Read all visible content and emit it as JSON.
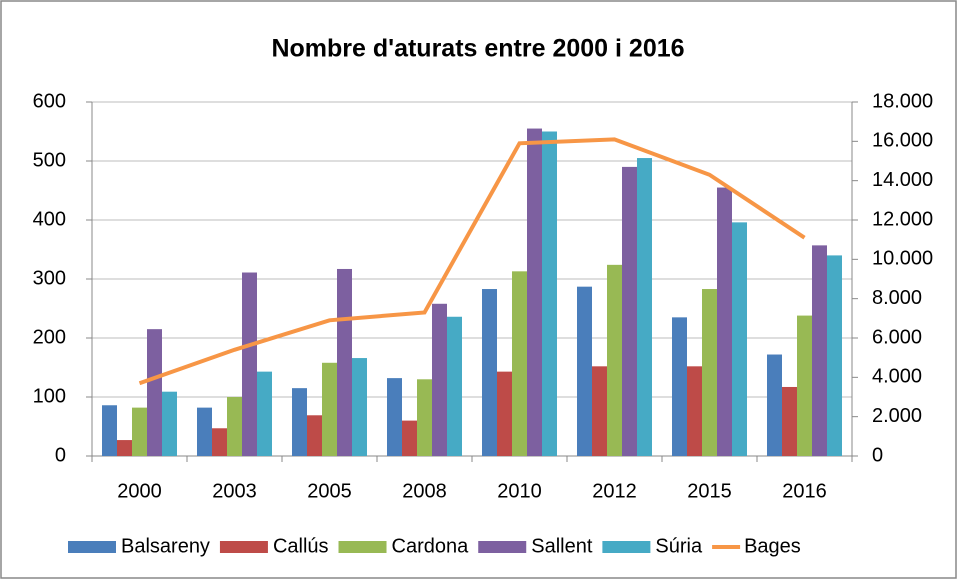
{
  "chart_data": {
    "type": "bar",
    "title": "Nombre d'aturats entre 2000 i 2016",
    "categories": [
      "2000",
      "2003",
      "2005",
      "2008",
      "2010",
      "2012",
      "2015",
      "2016"
    ],
    "series": [
      {
        "name": "Balsareny",
        "color": "#4a7ebb",
        "values": [
          86,
          82,
          115,
          132,
          283,
          287,
          235,
          172
        ]
      },
      {
        "name": "Callús",
        "color": "#be4b48",
        "values": [
          27,
          47,
          69,
          60,
          143,
          152,
          152,
          117
        ]
      },
      {
        "name": "Cardona",
        "color": "#98b954",
        "values": [
          82,
          100,
          158,
          130,
          313,
          324,
          283,
          238
        ]
      },
      {
        "name": "Sallent",
        "color": "#7d60a0",
        "values": [
          215,
          311,
          317,
          258,
          555,
          490,
          455,
          357
        ]
      },
      {
        "name": "Súria",
        "color": "#46aac5",
        "values": [
          109,
          143,
          166,
          236,
          550,
          505,
          396,
          340
        ]
      },
      {
        "name": "Bages",
        "color": "#f79646",
        "type": "line",
        "axis": "y2",
        "values": [
          3700,
          5400,
          6900,
          7300,
          15900,
          16100,
          14300,
          11100
        ]
      }
    ],
    "ylim": [
      0,
      600
    ],
    "yticks": [
      0,
      100,
      200,
      300,
      400,
      500,
      600
    ],
    "y2lim": [
      0,
      18000
    ],
    "y2ticks": [
      0,
      {
        "value": 2000,
        "label": "2.000"
      },
      {
        "value": 4000,
        "label": "4.000"
      },
      {
        "value": 6000,
        "label": "6.000"
      },
      {
        "value": 8000,
        "label": "8.000"
      },
      {
        "value": 10000,
        "label": "10.000"
      },
      {
        "value": 12000,
        "label": "12.000"
      },
      {
        "value": 14000,
        "label": "14.000"
      },
      {
        "value": 16000,
        "label": "16.000"
      },
      {
        "value": 18000,
        "label": "18.000"
      }
    ],
    "grid": true,
    "legend": "bottom"
  }
}
